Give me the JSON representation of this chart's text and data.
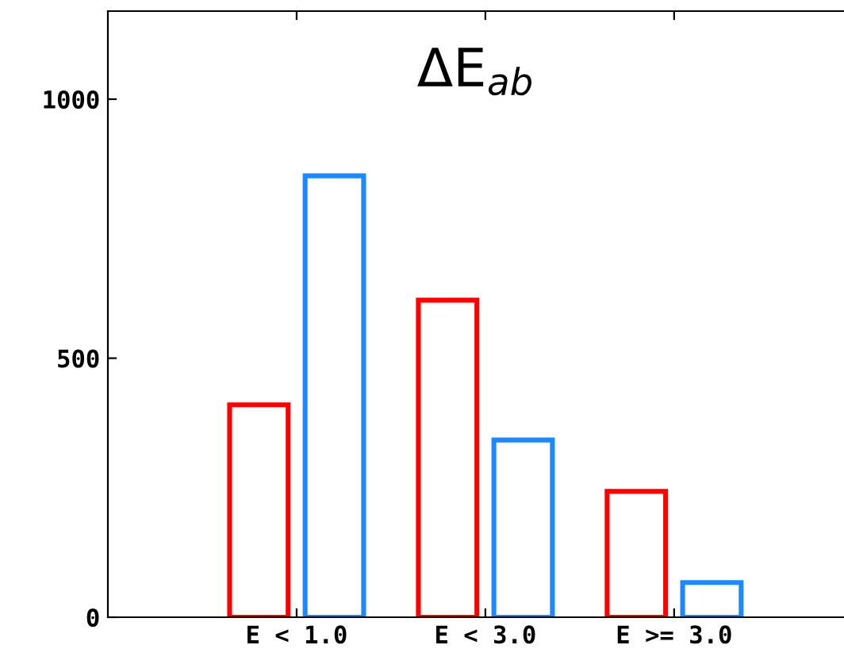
{
  "chart_data": {
    "type": "bar",
    "title": "ΔE$_{ab}$",
    "categories": [
      "E < 1.0",
      "E < 3.0",
      "E >= 3.0"
    ],
    "series": [
      {
        "color": "#ff0000",
        "values": [
          410,
          612,
          243
        ]
      },
      {
        "color": "#1e88ff",
        "values": [
          852,
          342,
          67
        ]
      }
    ],
    "ylim": [
      0,
      1170
    ],
    "yticks": [
      0,
      500,
      1000
    ],
    "grid": false,
    "legend": false
  }
}
